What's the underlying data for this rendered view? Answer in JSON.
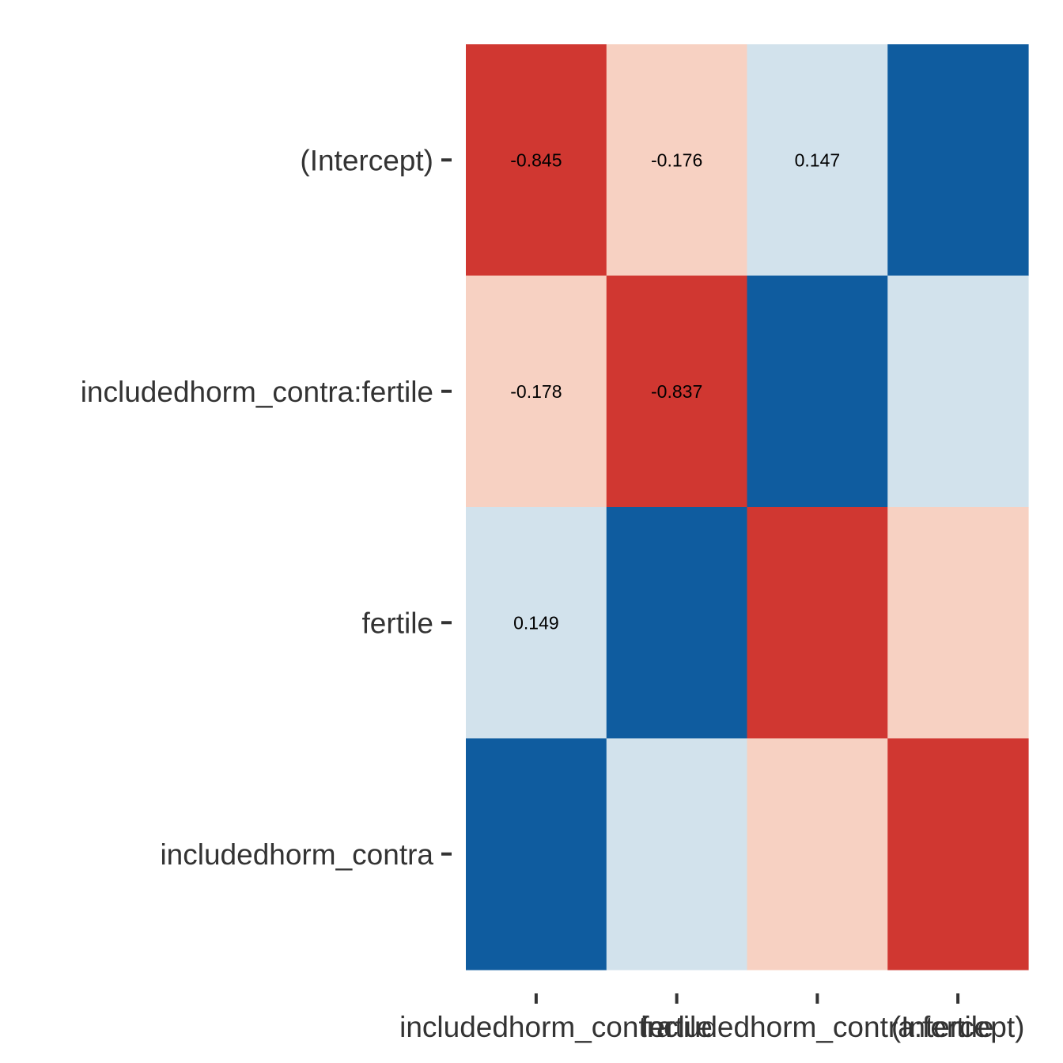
{
  "chart_data": {
    "type": "heatmap",
    "rows": [
      "(Intercept)",
      "includedhorm_contra:fertile",
      "fertile",
      "includedhorm_contra"
    ],
    "columns": [
      "includedhorm_contra",
      "fertile",
      "includedhorm_contra:fertile",
      "(Intercept)"
    ],
    "values": [
      [
        -0.845,
        -0.176,
        0.147,
        1
      ],
      [
        -0.178,
        -0.837,
        1,
        0.147
      ],
      [
        0.149,
        1,
        -0.837,
        -0.176
      ],
      [
        1,
        0.149,
        -0.178,
        -0.845
      ]
    ],
    "labels": [
      [
        "-0.845",
        "-0.176",
        "0.147",
        ""
      ],
      [
        "-0.178",
        "-0.837",
        "",
        ""
      ],
      [
        "0.149",
        "",
        "",
        ""
      ],
      [
        "",
        "",
        "",
        ""
      ]
    ],
    "colors": {
      "strong_negative": "#d03731",
      "weak_negative": "#f7d1c2",
      "weak_positive": "#d2e2ec",
      "strong_positive": "#0f5c9f"
    }
  }
}
